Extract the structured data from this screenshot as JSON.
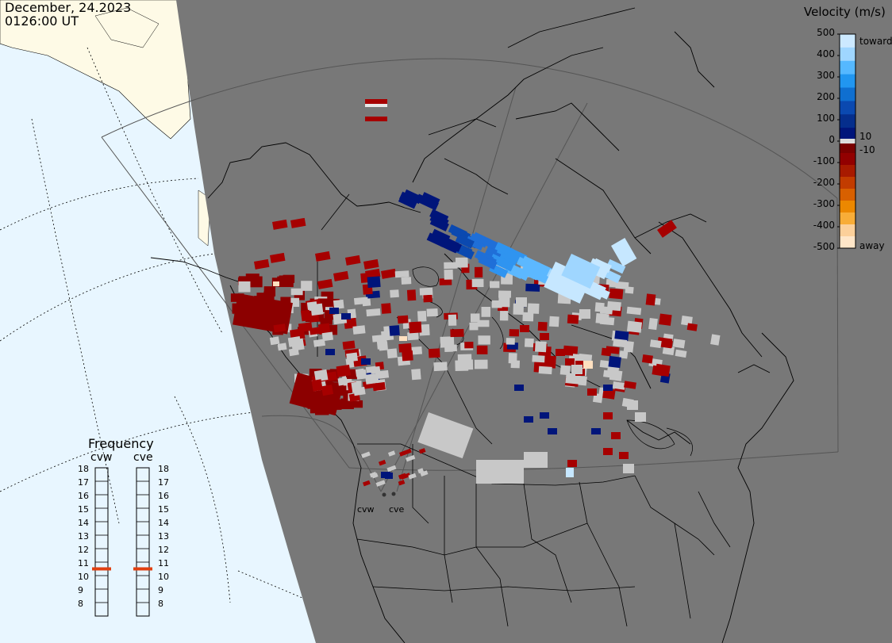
{
  "header": {
    "date": "December, 24.2023",
    "time": "0126:00 UT"
  },
  "legend": {
    "title": "Velocity (m/s)",
    "ticks": [
      "500",
      "400",
      "300",
      "200",
      "100",
      "0",
      "-100",
      "-200",
      "-300",
      "-400",
      "-500"
    ],
    "label_toward": "toward",
    "label_away": "away",
    "label_plus10": "10",
    "label_minus10": "-10",
    "colors": {
      "toward": [
        "#cce9ff",
        "#9fd6ff",
        "#55b8ff",
        "#2196f0",
        "#0f6fd0",
        "#0b49b0",
        "#052e8c",
        "#00157a"
      ],
      "away": [
        "#7a0000",
        "#920000",
        "#a81a00",
        "#c23c00",
        "#d86000",
        "#ec8800",
        "#f8ad38",
        "#fcd09a",
        "#ffe6c8"
      ],
      "ground": "#c8c8c8"
    }
  },
  "frequency": {
    "title": "Frequency",
    "radars": [
      {
        "name": "cvw",
        "value": 11
      },
      {
        "name": "cve",
        "value": 11
      }
    ],
    "scale": [
      "18",
      "17",
      "16",
      "15",
      "14",
      "13",
      "12",
      "11",
      "10",
      "9",
      "8"
    ],
    "marker_color": "#e04010"
  },
  "radars": {
    "west": "cvw",
    "east": "cve"
  },
  "map": {
    "night_color": "#787878",
    "land_day_color": "#fefae6",
    "ocean_day_color": "#e8f6ff"
  }
}
